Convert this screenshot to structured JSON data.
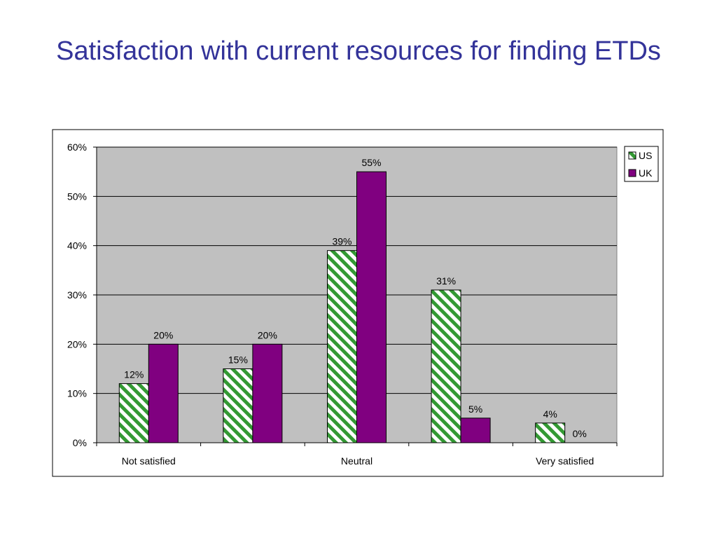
{
  "slide": {
    "title": "Satisfaction with current resources for finding ETDs"
  },
  "colors": {
    "title": "#333399",
    "plot_background": "#C0C0C0",
    "us_stripe": "#339933",
    "uk_fill": "#800080",
    "gridline": "#000000"
  },
  "chart_data": {
    "type": "bar",
    "title": "",
    "xlabel": "",
    "ylabel": "",
    "categories": [
      "Not satisfied",
      "",
      "Neutral",
      "",
      "Very satisfied"
    ],
    "series": [
      {
        "name": "US",
        "values": [
          12,
          15,
          39,
          31,
          4
        ],
        "labels": [
          "12%",
          "15%",
          "39%",
          "31%",
          "4%"
        ],
        "pattern": "green-diagonal-stripes"
      },
      {
        "name": "UK",
        "values": [
          20,
          20,
          55,
          5,
          0
        ],
        "labels": [
          "20%",
          "20%",
          "55%",
          "5%",
          "0%"
        ],
        "pattern": "solid-purple"
      }
    ],
    "ylim": [
      0,
      60
    ],
    "yticks": [
      0,
      10,
      20,
      30,
      40,
      50,
      60
    ],
    "ytick_labels": [
      "0%",
      "10%",
      "20%",
      "30%",
      "40%",
      "50%",
      "60%"
    ],
    "grid": true,
    "legend": "top-right"
  }
}
